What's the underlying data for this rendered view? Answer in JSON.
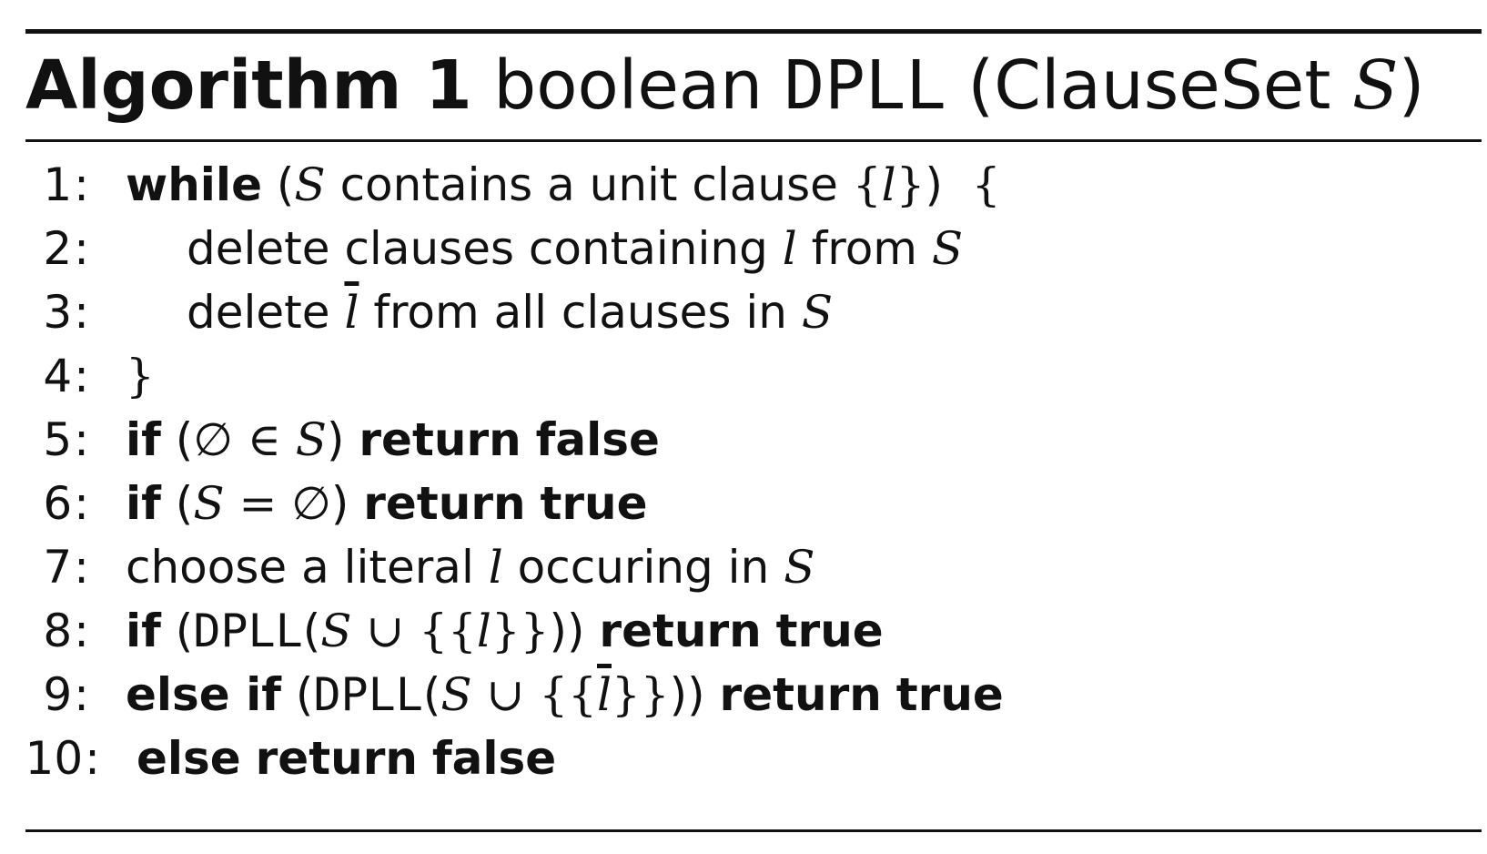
{
  "caption": {
    "label": "Algorithm 1",
    "return_type": "boolean",
    "name": "DPLL",
    "param_type": "ClauseSet",
    "param": "S"
  },
  "lines": [
    {
      "n": "1",
      "text": "while (S contains a unit clause {l})  {"
    },
    {
      "n": "2",
      "text": "delete clauses containing l from S"
    },
    {
      "n": "3",
      "text": "delete l̄ from all clauses in S"
    },
    {
      "n": "4",
      "text": "}"
    },
    {
      "n": "5",
      "text": "if (∅ ∈ S) return false"
    },
    {
      "n": "6",
      "text": "if (S = ∅) return true"
    },
    {
      "n": "7",
      "text": "choose a literal l occuring in S"
    },
    {
      "n": "8",
      "text": "if (DPLL(S ∪ {{l}})) return true"
    },
    {
      "n": "9",
      "text": "else if (DPLL(S ∪ {{l̄}})) return true"
    },
    {
      "n": "10",
      "text": "else return false"
    }
  ],
  "tokens": {
    "while": "while",
    "contains_unit": "contains a unit clause",
    "delete": "delete",
    "clauses_containing": "clauses containing",
    "from": "from",
    "from_all": "from all clauses in",
    "if": "if",
    "else_if": "else if",
    "else": "else",
    "return": "return",
    "true": "true",
    "false": "false",
    "choose": "choose a literal",
    "occuring": "occuring in",
    "dpll": "DPLL",
    "S": "S",
    "l": "l",
    "emptyset": "∅",
    "in": "∈",
    "union": "∪",
    "eq": "="
  }
}
